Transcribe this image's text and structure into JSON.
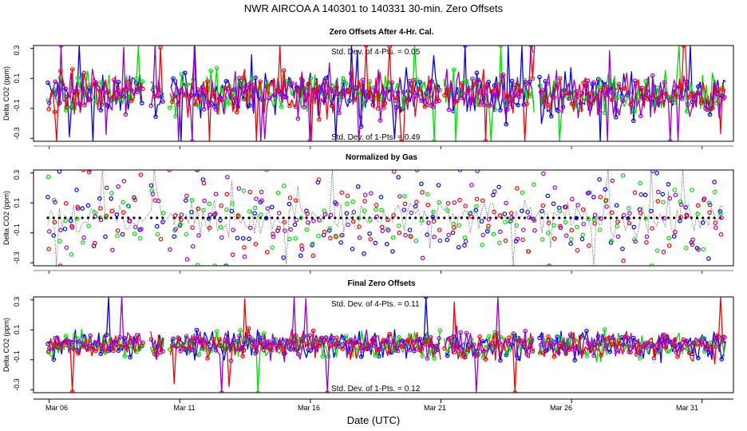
{
  "chart_data": {
    "type": "line",
    "title": "NWR   AIRCOA A   140301 to 140331   30-min. Zero Offsets",
    "xlabel": "Date (UTC)",
    "x_range_days": [
      5.4,
      32.2
    ],
    "x_tick_positions_days": [
      6,
      11,
      16,
      21,
      26,
      31
    ],
    "x_tick_labels": [
      "Mar 06",
      "Mar 11",
      "Mar 16",
      "Mar 21",
      "Mar 26",
      "Mar 31"
    ],
    "series_colors": {
      "blue": "#0000ff",
      "green": "#00dd00",
      "red": "#ff0000",
      "purple": "#9900cc",
      "black": "#000000"
    },
    "panels": [
      {
        "title": "Zero Offsets After 4-Hr. Cal.",
        "ylabel": "Delta CO2 (ppm)",
        "ylim": [
          -0.32,
          0.32
        ],
        "y_ticks": [
          "-0.3",
          "-0.1",
          "0.1",
          "0.3"
        ],
        "annotations": [
          "Std. Dev. of 4-Pts. = 0.05",
          "Std. Dev. of 1-Pts. = 0.49"
        ],
        "series": [
          "blue",
          "green",
          "red",
          "purple"
        ],
        "spread": 0.07
      },
      {
        "title": "Normalized by Gas",
        "ylabel": "Delta CO2 (ppm)",
        "ylim": [
          -0.32,
          0.32
        ],
        "y_ticks": [
          "-0.3",
          "-0.1",
          "0.1",
          "0.3"
        ],
        "annotations": [],
        "series": [
          "blue",
          "green",
          "red",
          "purple"
        ],
        "spread": 0.14
      },
      {
        "title": "Final Zero Offsets",
        "ylabel": "Delta CO2 (ppm)",
        "ylim": [
          -0.32,
          0.32
        ],
        "y_ticks": [
          "-0.3",
          "-0.1",
          "0.1",
          "0.3"
        ],
        "annotations": [
          "Std. Dev. of 4-Pts. = 0.11",
          "Std. Dev. of 1-Pts. = 0.12"
        ],
        "series": [
          "blue",
          "green",
          "red",
          "purple"
        ],
        "spread": 0.045
      }
    ],
    "data_gaps_days": [
      [
        9.6,
        9.85
      ],
      [
        10.4,
        10.6
      ],
      [
        21.0,
        21.1
      ],
      [
        24.6,
        24.75
      ]
    ]
  }
}
